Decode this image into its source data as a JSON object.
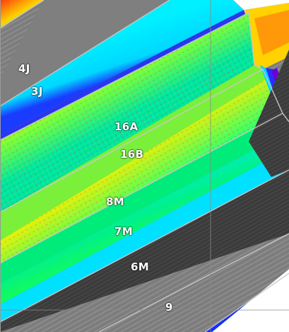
{
  "map": {
    "labels": [
      "4J",
      "3J",
      "16A",
      "16B",
      "8M",
      "7M",
      "6M",
      "9"
    ],
    "colors": {
      "bare_soil": "#7a7a7a",
      "dark_soil": "#3a3a3a",
      "map_background": "#ffffff",
      "index_low": "#1f2bd6",
      "index_mid_low": "#00e5ff",
      "index_mid": "#00e070",
      "index_mid_high": "#f5e400",
      "index_high": "#e8261a",
      "grid_line": "#8a8a8a"
    },
    "layers": [
      "vegetation-index-raster",
      "field-boundaries",
      "field-labels",
      "grid-lines"
    ]
  }
}
